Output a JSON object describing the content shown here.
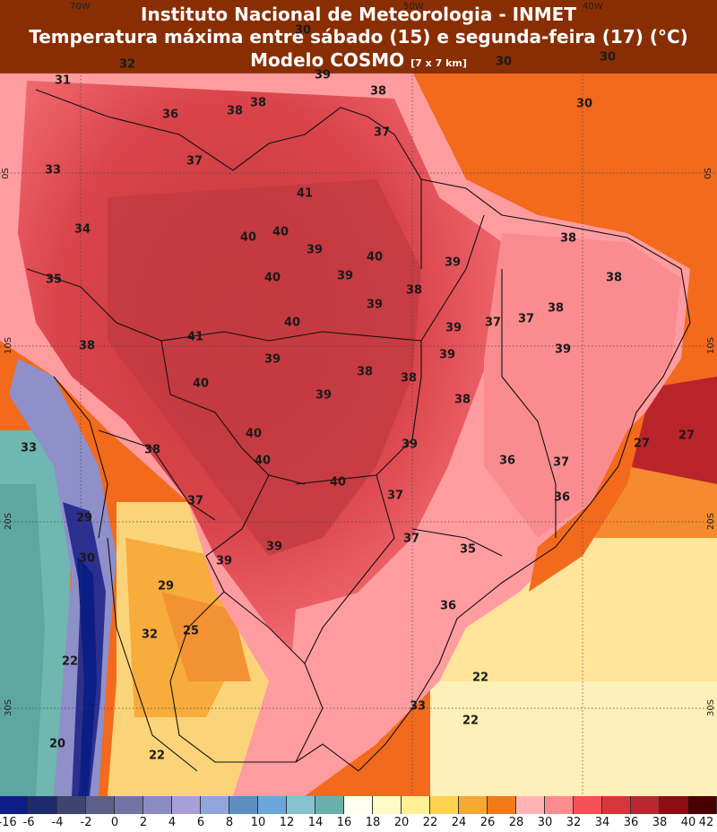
{
  "header": {
    "line1": "Instituto Nacional de Meteorologia - INMET",
    "line2": "Temperatura máxima entre sábado (15) e segunda-feira (17) (°C)",
    "line3": "Modelo COSMO",
    "resolution": "[7 x 7 km]"
  },
  "coords": {
    "lon1": "70W",
    "lon2": "50W",
    "lon3": "40W",
    "lat1": "0S",
    "lat2": "10S",
    "lat3": "20S",
    "lat4": "30S"
  },
  "labels": [
    "30",
    "30",
    "30",
    "30",
    "32",
    "31",
    "39",
    "38",
    "36",
    "38",
    "38",
    "37",
    "37",
    "33",
    "41",
    "34",
    "40",
    "40",
    "39",
    "40",
    "35",
    "39",
    "38",
    "40",
    "39",
    "39",
    "37",
    "37",
    "38",
    "38",
    "38",
    "39",
    "40",
    "39",
    "39",
    "41",
    "39",
    "38",
    "38",
    "40",
    "39",
    "38",
    "38",
    "40",
    "39",
    "36",
    "37",
    "33",
    "38",
    "40",
    "40",
    "37",
    "37",
    "36",
    "29",
    "37",
    "39",
    "35",
    "39",
    "30",
    "29",
    "36",
    "32",
    "25",
    "22",
    "22",
    "33",
    "22",
    "20",
    "22",
    "27",
    "27"
  ],
  "colorbar": {
    "ticks": [
      "-16",
      "-6",
      "-4",
      "-2",
      "0",
      "2",
      "4",
      "6",
      "8",
      "10",
      "12",
      "14",
      "16",
      "18",
      "20",
      "22",
      "24",
      "26",
      "28",
      "30",
      "32",
      "34",
      "36",
      "38",
      "40",
      "42"
    ],
    "colors": [
      "#0a1e86",
      "#1e2a6e",
      "#3d4470",
      "#5c5f88",
      "#7373a6",
      "#8c8cc4",
      "#a8a0d8",
      "#8ea6dc",
      "#5d8ec0",
      "#6aa6dc",
      "#86c2d0",
      "#6cb0ac",
      "#fffff0",
      "#fffac8",
      "#fff096",
      "#ffd250",
      "#f6a834",
      "#f07a1c",
      "#ffb4b4",
      "#ff8c8c",
      "#f45058",
      "#d6363a",
      "#b82830",
      "#8a0e12",
      "#4a0000"
    ]
  }
}
